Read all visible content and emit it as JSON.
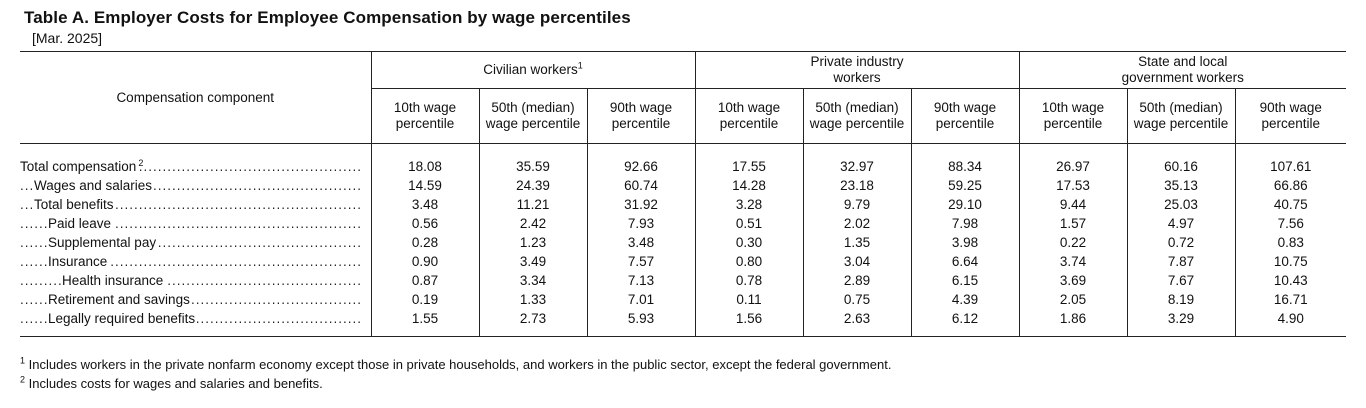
{
  "title": "Table A. Employer Costs for Employee Compensation by wage percentiles",
  "subtitle": "[Mar. 2025]",
  "header": {
    "component_label": "Compensation component",
    "groups": [
      {
        "name": "Civilian workers",
        "sup": "1"
      },
      {
        "name": "Private industry workers",
        "sup": ""
      },
      {
        "name": "State and local government workers",
        "sup": ""
      }
    ],
    "percentiles": [
      "10th wage percentile",
      "50th (median) wage percentile",
      "90th wage percentile"
    ]
  },
  "rows": [
    {
      "label": "Total compensation",
      "sup": "2",
      "indent": 0,
      "values": [
        "18.08",
        "35.59",
        "92.66",
        "17.55",
        "32.97",
        "88.34",
        "26.97",
        "60.16",
        "107.61"
      ]
    },
    {
      "label": "Wages and salaries",
      "sup": "",
      "indent": 1,
      "values": [
        "14.59",
        "24.39",
        "60.74",
        "14.28",
        "23.18",
        "59.25",
        "17.53",
        "35.13",
        "66.86"
      ]
    },
    {
      "label": "Total benefits",
      "sup": "",
      "indent": 1,
      "values": [
        "3.48",
        "11.21",
        "31.92",
        "3.28",
        "9.79",
        "29.10",
        "9.44",
        "25.03",
        "40.75"
      ]
    },
    {
      "label": "Paid leave",
      "sup": "",
      "indent": 2,
      "values": [
        "0.56",
        "2.42",
        "7.93",
        "0.51",
        "2.02",
        "7.98",
        "1.57",
        "4.97",
        "7.56"
      ]
    },
    {
      "label": "Supplemental pay",
      "sup": "",
      "indent": 2,
      "values": [
        "0.28",
        "1.23",
        "3.48",
        "0.30",
        "1.35",
        "3.98",
        "0.22",
        "0.72",
        "0.83"
      ]
    },
    {
      "label": "Insurance",
      "sup": "",
      "indent": 2,
      "values": [
        "0.90",
        "3.49",
        "7.57",
        "0.80",
        "3.04",
        "6.64",
        "3.74",
        "7.87",
        "10.75"
      ]
    },
    {
      "label": "Health insurance",
      "sup": "",
      "indent": 3,
      "values": [
        "0.87",
        "3.34",
        "7.13",
        "0.78",
        "2.89",
        "6.15",
        "3.69",
        "7.67",
        "10.43"
      ]
    },
    {
      "label": "Retirement and savings",
      "sup": "",
      "indent": 2,
      "values": [
        "0.19",
        "1.33",
        "7.01",
        "0.11",
        "0.75",
        "4.39",
        "2.05",
        "8.19",
        "16.71"
      ]
    },
    {
      "label": "Legally required benefits",
      "sup": "",
      "indent": 2,
      "values": [
        "1.55",
        "2.73",
        "5.93",
        "1.56",
        "2.63",
        "6.12",
        "1.86",
        "3.29",
        "4.90"
      ]
    }
  ],
  "footnotes": [
    {
      "mark": "1",
      "text": "Includes workers in the private nonfarm economy except those in private households, and workers in the public sector, except the federal government."
    },
    {
      "mark": "2",
      "text": "Includes costs for wages and salaries and benefits."
    }
  ]
}
